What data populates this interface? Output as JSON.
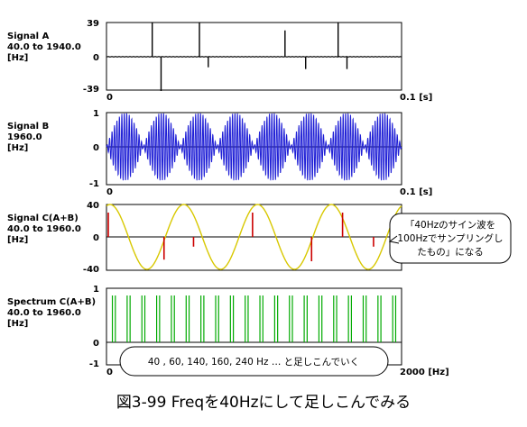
{
  "caption": "図3-99  Freqを40Hzにして足しこんでみる",
  "panels": [
    {
      "id": "signal_a",
      "label_lines": [
        "Signal A",
        "40.0 to 1940.0",
        "[Hz]"
      ],
      "y_top": "39",
      "y_mid": "0",
      "y_bottom": "-39",
      "x_left": "0",
      "x_right": "0.1 [s]"
    },
    {
      "id": "signal_b",
      "label_lines": [
        "Signal B",
        "1960.0",
        "[Hz]"
      ],
      "y_top": "1",
      "y_mid": "0",
      "y_bottom": "-1",
      "x_left": "0",
      "x_right": "0.1 [s]"
    },
    {
      "id": "signal_c",
      "label_lines": [
        "Signal C(A+B)",
        "40.0 to 1960.0",
        "[Hz]"
      ],
      "y_top": "40",
      "y_mid": "0",
      "y_bottom": "-40",
      "x_left": "",
      "x_right": ""
    },
    {
      "id": "spectrum_c",
      "label_lines": [
        "Spectrum C(A+B)",
        "40.0 to 1960.0",
        "[Hz]"
      ],
      "y_top": "1",
      "y_mid": "0",
      "y_bottom": "-1",
      "x_left": "0",
      "x_right": "2000 [Hz]"
    }
  ],
  "callout_lines": [
    "「40Hzのサイン波を",
    "100Hzでサンプリングし",
    "たもの」になる"
  ],
  "spectrum_note": "40 , 60, 140,  160, 240 Hz … と足しこんでいく",
  "colors": {
    "axis": "#000000",
    "signal_b": "#1f1fd6",
    "sine": "#d8c800",
    "impulse": "#cc0000",
    "spectrum": "#00aa00"
  },
  "chart_data": [
    {
      "type": "line",
      "name": "Signal A",
      "x_unit": "s",
      "xlim": [
        0,
        0.1
      ],
      "ylim": [
        -39,
        39
      ],
      "spikes": [
        {
          "t": 0.0155,
          "v": 39
        },
        {
          "t": 0.0185,
          "v": -39
        },
        {
          "t": 0.0315,
          "v": 39
        },
        {
          "t": 0.0345,
          "v": -12
        },
        {
          "t": 0.0605,
          "v": 30
        },
        {
          "t": 0.0675,
          "v": -14
        },
        {
          "t": 0.0785,
          "v": 39
        },
        {
          "t": 0.0815,
          "v": -14
        }
      ]
    },
    {
      "type": "line",
      "name": "Signal B",
      "x_unit": "s",
      "xlim": [
        0,
        0.1
      ],
      "ylim": [
        -1,
        1
      ],
      "carrier_hz": 1960,
      "beats": 8,
      "amplitude": 1
    },
    {
      "type": "line",
      "name": "Signal C(A+B)",
      "x_unit": "s",
      "xlim": [
        0,
        0.1
      ],
      "ylim": [
        -40,
        40
      ],
      "sine_hz": 40,
      "sine_amplitude": 40,
      "impulses": [
        {
          "t": 0.0,
          "v": 30
        },
        {
          "t": 0.0195,
          "v": -28
        },
        {
          "t": 0.0295,
          "v": -12
        },
        {
          "t": 0.0495,
          "v": 30
        },
        {
          "t": 0.0695,
          "v": -30
        },
        {
          "t": 0.08,
          "v": 30
        },
        {
          "t": 0.0905,
          "v": -12
        }
      ]
    },
    {
      "type": "bar",
      "name": "Spectrum C(A+B)",
      "x_unit": "Hz",
      "xlim": [
        0,
        2000
      ],
      "ylim": [
        -1,
        1
      ],
      "frequencies": [
        40,
        60,
        140,
        160,
        240,
        260,
        340,
        360,
        440,
        460,
        540,
        560,
        640,
        660,
        740,
        760,
        840,
        860,
        940,
        960,
        1040,
        1060,
        1140,
        1160,
        1240,
        1260,
        1340,
        1360,
        1440,
        1460,
        1540,
        1560,
        1640,
        1660,
        1740,
        1760,
        1840,
        1860,
        1940,
        1960
      ],
      "magnitude": 1
    }
  ]
}
